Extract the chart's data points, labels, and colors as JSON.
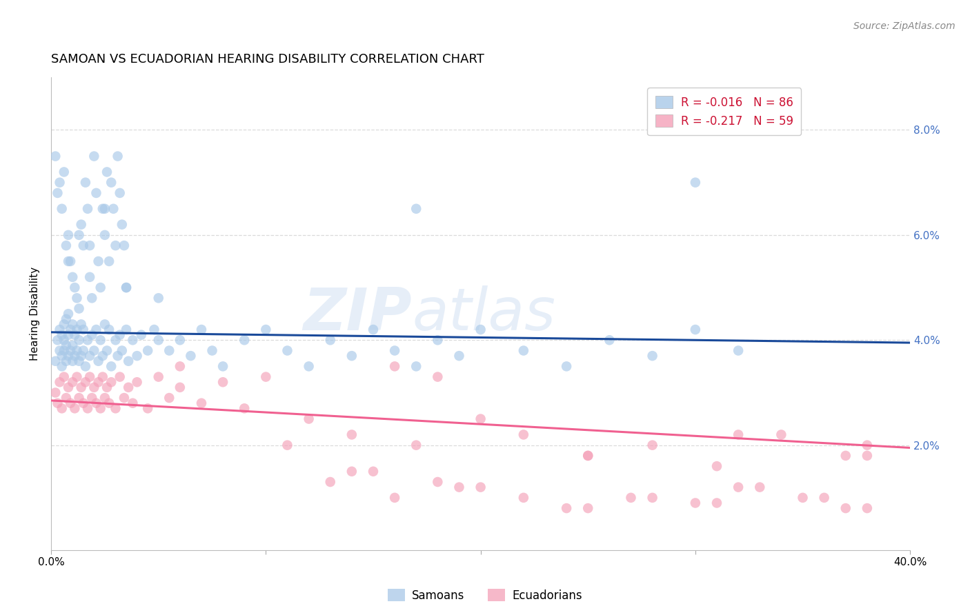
{
  "title": "SAMOAN VS ECUADORIAN HEARING DISABILITY CORRELATION CHART",
  "source": "Source: ZipAtlas.com",
  "ylabel": "Hearing Disability",
  "watermark": "ZIPatlas",
  "samoan_color": "#a8c8e8",
  "ecuadorian_color": "#f4a0b8",
  "samoan_line_color": "#1a4a9a",
  "ecuadorian_line_color": "#f06090",
  "background_color": "#ffffff",
  "grid_color": "#d8d8d8",
  "right_tick_color": "#4472c4",
  "ylim": [
    0.0,
    0.09
  ],
  "xlim": [
    0.0,
    0.4
  ],
  "yticks": [
    0.02,
    0.04,
    0.06,
    0.08
  ],
  "ytick_labels": [
    "2.0%",
    "4.0%",
    "6.0%",
    "8.0%"
  ],
  "xticks": [
    0.0,
    0.1,
    0.2,
    0.3,
    0.4
  ],
  "xtick_labels": [
    "0.0%",
    "",
    "",
    "",
    "40.0%"
  ],
  "samoan_x": [
    0.002,
    0.003,
    0.004,
    0.004,
    0.005,
    0.005,
    0.005,
    0.006,
    0.006,
    0.006,
    0.007,
    0.007,
    0.007,
    0.008,
    0.008,
    0.008,
    0.009,
    0.009,
    0.01,
    0.01,
    0.01,
    0.011,
    0.011,
    0.012,
    0.012,
    0.013,
    0.013,
    0.014,
    0.014,
    0.015,
    0.015,
    0.016,
    0.017,
    0.018,
    0.019,
    0.02,
    0.021,
    0.022,
    0.023,
    0.024,
    0.025,
    0.026,
    0.027,
    0.028,
    0.03,
    0.031,
    0.032,
    0.033,
    0.035,
    0.036,
    0.038,
    0.04,
    0.042,
    0.045,
    0.048,
    0.05,
    0.055,
    0.06,
    0.065,
    0.07,
    0.075,
    0.08,
    0.09,
    0.1,
    0.11,
    0.12,
    0.13,
    0.14,
    0.15,
    0.16,
    0.17,
    0.18,
    0.19,
    0.2,
    0.22,
    0.24,
    0.26,
    0.28,
    0.3,
    0.32,
    0.008,
    0.013,
    0.018,
    0.025,
    0.035,
    0.05
  ],
  "samoan_y": [
    0.036,
    0.04,
    0.038,
    0.042,
    0.035,
    0.037,
    0.041,
    0.038,
    0.04,
    0.043,
    0.036,
    0.039,
    0.044,
    0.037,
    0.041,
    0.045,
    0.038,
    0.042,
    0.036,
    0.039,
    0.043,
    0.037,
    0.041,
    0.038,
    0.042,
    0.036,
    0.04,
    0.037,
    0.043,
    0.038,
    0.042,
    0.035,
    0.04,
    0.037,
    0.041,
    0.038,
    0.042,
    0.036,
    0.04,
    0.037,
    0.043,
    0.038,
    0.042,
    0.035,
    0.04,
    0.037,
    0.041,
    0.038,
    0.042,
    0.036,
    0.04,
    0.037,
    0.041,
    0.038,
    0.042,
    0.04,
    0.038,
    0.04,
    0.037,
    0.042,
    0.038,
    0.035,
    0.04,
    0.042,
    0.038,
    0.035,
    0.04,
    0.037,
    0.042,
    0.038,
    0.035,
    0.04,
    0.037,
    0.042,
    0.038,
    0.035,
    0.04,
    0.037,
    0.042,
    0.038,
    0.055,
    0.06,
    0.058,
    0.065,
    0.05,
    0.048
  ],
  "samoan_y_high": [
    0.075,
    0.068,
    0.07,
    0.065,
    0.072,
    0.058,
    0.06,
    0.055,
    0.052,
    0.05,
    0.048,
    0.046,
    0.062,
    0.058,
    0.07,
    0.065,
    0.052,
    0.048,
    0.075,
    0.068,
    0.055,
    0.05,
    0.065,
    0.06,
    0.072,
    0.055,
    0.07,
    0.065,
    0.058,
    0.075,
    0.068,
    0.062,
    0.058,
    0.05,
    0.065,
    0.07
  ],
  "samoan_x_high": [
    0.002,
    0.003,
    0.004,
    0.005,
    0.006,
    0.007,
    0.008,
    0.009,
    0.01,
    0.011,
    0.012,
    0.013,
    0.014,
    0.015,
    0.016,
    0.017,
    0.018,
    0.019,
    0.02,
    0.021,
    0.022,
    0.023,
    0.024,
    0.025,
    0.026,
    0.027,
    0.028,
    0.029,
    0.03,
    0.031,
    0.032,
    0.033,
    0.034,
    0.035,
    0.17,
    0.3
  ],
  "ecuadorian_x": [
    0.002,
    0.003,
    0.004,
    0.005,
    0.006,
    0.007,
    0.008,
    0.009,
    0.01,
    0.011,
    0.012,
    0.013,
    0.014,
    0.015,
    0.016,
    0.017,
    0.018,
    0.019,
    0.02,
    0.021,
    0.022,
    0.023,
    0.024,
    0.025,
    0.026,
    0.027,
    0.028,
    0.03,
    0.032,
    0.034,
    0.036,
    0.038,
    0.04,
    0.045,
    0.05,
    0.055,
    0.06,
    0.07,
    0.08,
    0.09,
    0.1,
    0.11,
    0.12,
    0.14,
    0.16,
    0.18,
    0.2,
    0.22,
    0.25,
    0.28,
    0.31,
    0.34,
    0.37,
    0.17,
    0.25,
    0.32,
    0.38,
    0.38,
    0.06
  ],
  "ecuadorian_y": [
    0.03,
    0.028,
    0.032,
    0.027,
    0.033,
    0.029,
    0.031,
    0.028,
    0.032,
    0.027,
    0.033,
    0.029,
    0.031,
    0.028,
    0.032,
    0.027,
    0.033,
    0.029,
    0.031,
    0.028,
    0.032,
    0.027,
    0.033,
    0.029,
    0.031,
    0.028,
    0.032,
    0.027,
    0.033,
    0.029,
    0.031,
    0.028,
    0.032,
    0.027,
    0.033,
    0.029,
    0.031,
    0.028,
    0.032,
    0.027,
    0.033,
    0.02,
    0.025,
    0.022,
    0.035,
    0.033,
    0.025,
    0.022,
    0.018,
    0.02,
    0.016,
    0.022,
    0.018,
    0.02,
    0.018,
    0.022,
    0.02,
    0.018,
    0.035
  ],
  "ecuadorian_y_low": [
    0.015,
    0.013,
    0.01,
    0.012,
    0.008,
    0.01,
    0.009,
    0.012,
    0.01,
    0.008,
    0.013,
    0.01,
    0.015,
    0.012,
    0.008,
    0.01,
    0.009,
    0.012,
    0.01,
    0.008
  ],
  "ecuadorian_x_low": [
    0.15,
    0.18,
    0.22,
    0.2,
    0.25,
    0.28,
    0.3,
    0.32,
    0.35,
    0.37,
    0.13,
    0.16,
    0.14,
    0.19,
    0.24,
    0.27,
    0.31,
    0.33,
    0.36,
    0.38
  ],
  "samoan_R": -0.016,
  "samoan_N": 86,
  "ecuadorian_R": -0.217,
  "ecuadorian_N": 59,
  "title_fontsize": 13,
  "axis_label_fontsize": 11,
  "tick_fontsize": 11,
  "legend_fontsize": 12,
  "source_fontsize": 10
}
